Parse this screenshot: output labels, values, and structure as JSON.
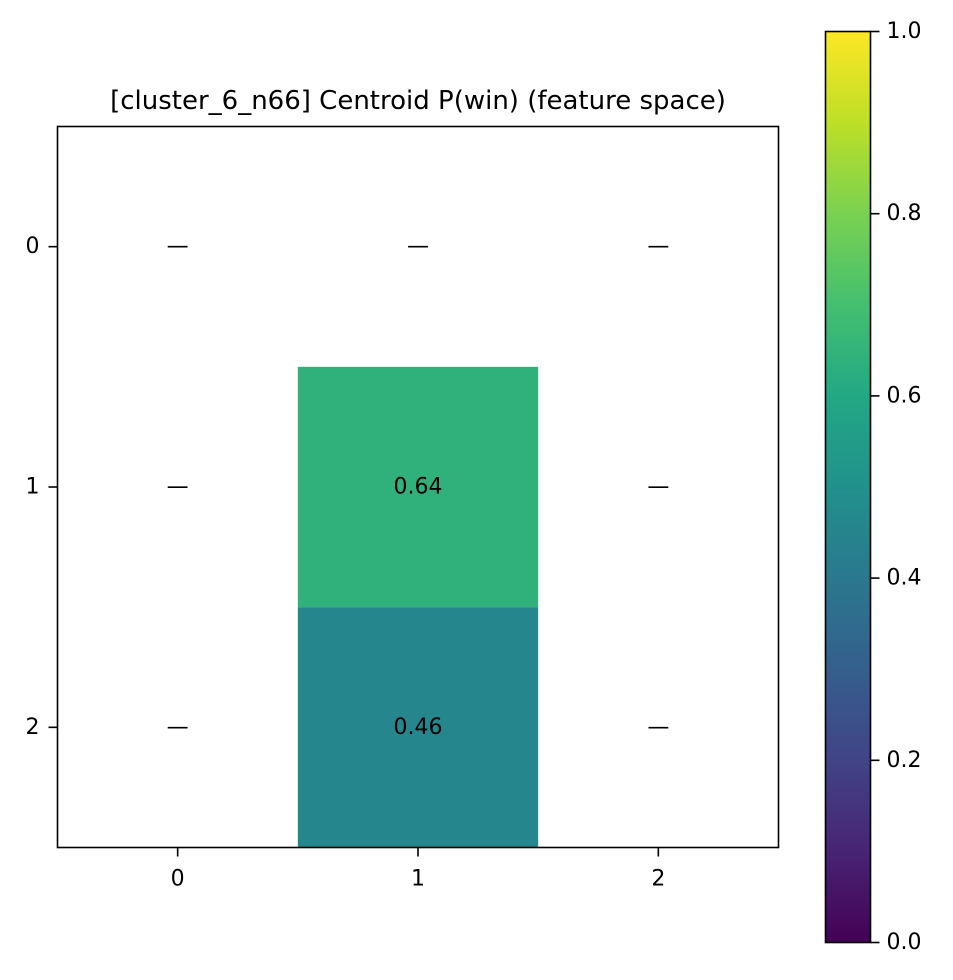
{
  "chart_data": {
    "type": "heatmap",
    "title": "[cluster_6_n66] Centroid P(win) (feature space)",
    "x_ticks": [
      "0",
      "1",
      "2"
    ],
    "y_ticks": [
      "0",
      "1",
      "2"
    ],
    "missing_label": "—",
    "values": [
      [
        null,
        null,
        null
      ],
      [
        null,
        0.64,
        null
      ],
      [
        null,
        0.46,
        null
      ]
    ],
    "cell_labels": [
      [
        "—",
        "—",
        "—"
      ],
      [
        "—",
        "0.64",
        "—"
      ],
      [
        "—",
        "0.46",
        "—"
      ]
    ],
    "colorbar": {
      "colormap": "viridis",
      "range": [
        0.0,
        1.0
      ],
      "ticks": [
        "0.0",
        "0.2",
        "0.4",
        "0.6",
        "0.8",
        "1.0"
      ],
      "tick_values": [
        0.0,
        0.2,
        0.4,
        0.6,
        0.8,
        1.0
      ]
    },
    "grid": false
  }
}
